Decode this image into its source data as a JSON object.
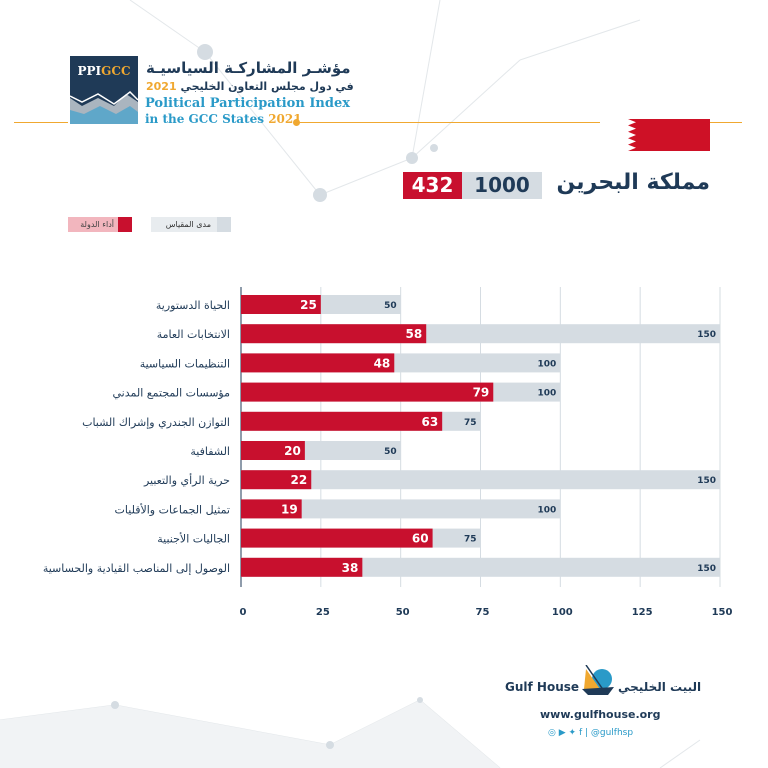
{
  "header": {
    "logo_text_a": "PPI",
    "logo_text_b": "GCC",
    "title_ar_line1": "مؤشـر المشاركـة السياسيـة",
    "title_ar_line2": "في دول مجلس التعاون الخليجي",
    "title_year": "2021",
    "title_en_line1": "Political Participation Index",
    "title_en_line2": "in the GCC States",
    "country": "مملكة البحرين",
    "scale_total": "1000",
    "country_score": "432"
  },
  "legend": {
    "scale_label": "مدى المقياس",
    "state_label": "أداء الدولة"
  },
  "colors": {
    "state": "#c8102e",
    "scale": "#d5dce2",
    "navy": "#1f3a57",
    "accent": "#f0a830"
  },
  "chart_data": {
    "type": "bar",
    "orientation": "horizontal",
    "categories": [
      "الحياة الدستورية",
      "الانتخابات العامة",
      "التنظيمات السياسية",
      "مؤسسات المجتمع المدني",
      "التوازن الجندري وإشراك الشباب",
      "الشفافية",
      "حرية الرأي والتعبير",
      "تمثيل الجماعات والأقليات",
      "الجاليات الأجنبية",
      "الوصول إلى المناصب القيادية والحساسية"
    ],
    "series": [
      {
        "name": "أداء الدولة",
        "values": [
          25,
          58,
          48,
          79,
          63,
          20,
          22,
          19,
          60,
          38
        ]
      },
      {
        "name": "مدى المقياس",
        "values": [
          50,
          150,
          100,
          100,
          75,
          50,
          150,
          100,
          75,
          150
        ]
      }
    ],
    "xlim": [
      0,
      150
    ],
    "xticks": [
      0,
      25,
      50,
      75,
      100,
      125,
      150
    ],
    "grid": true
  },
  "footer": {
    "brand_en": "Gulf House",
    "brand_ar": "البيت الخليجي",
    "website": "www.gulfhouse.org",
    "social_handle": "@gulfhsp"
  }
}
